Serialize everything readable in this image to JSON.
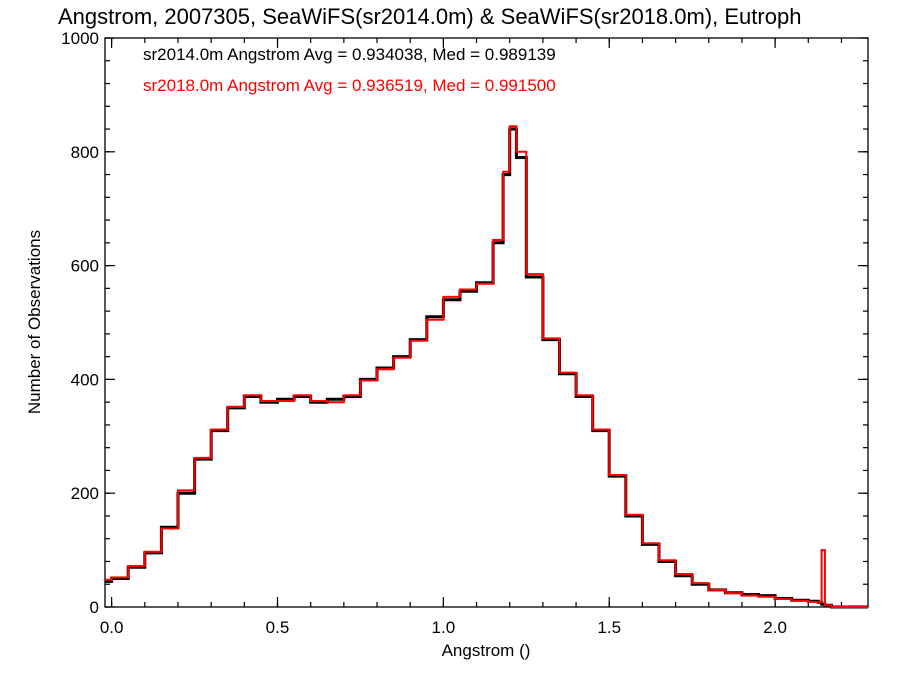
{
  "chart_data": {
    "type": "line",
    "title": "Angstrom, 2007305, SeaWiFS(sr2014.0m) & SeaWiFS(sr2018.0m), Eutroph",
    "xlabel": "Angstrom ()",
    "ylabel": "Number of Observations",
    "xlim": [
      -0.02,
      2.28
    ],
    "ylim": [
      0,
      1000
    ],
    "x_ticks": [
      0.0,
      0.5,
      1.0,
      1.5,
      2.0
    ],
    "x_tick_labels": [
      "0.0",
      "0.5",
      "1.0",
      "1.5",
      "2.0"
    ],
    "y_ticks": [
      0,
      200,
      400,
      600,
      800,
      1000
    ],
    "y_tick_labels": [
      "0",
      "200",
      "400",
      "600",
      "800",
      "1000"
    ],
    "grid": false,
    "annotations": [
      {
        "text": "sr2014.0m Angstrom Avg = 0.934038, Med = 0.989139",
        "color": "#000000"
      },
      {
        "text": "sr2018.0m Angstrom Avg = 0.936519, Med = 0.991500",
        "color": "#ff0000"
      }
    ],
    "series": [
      {
        "color": "#000000",
        "x": [
          -0.02,
          0.0,
          0.05,
          0.1,
          0.15,
          0.2,
          0.25,
          0.3,
          0.35,
          0.4,
          0.45,
          0.5,
          0.55,
          0.6,
          0.65,
          0.7,
          0.75,
          0.8,
          0.85,
          0.9,
          0.95,
          1.0,
          1.05,
          1.1,
          1.15,
          1.18,
          1.2,
          1.22,
          1.25,
          1.3,
          1.35,
          1.4,
          1.45,
          1.5,
          1.55,
          1.6,
          1.65,
          1.7,
          1.75,
          1.8,
          1.85,
          1.9,
          1.95,
          2.0,
          2.05,
          2.1,
          2.13,
          2.14,
          2.15,
          2.17,
          2.2,
          2.28
        ],
        "y": [
          45,
          50,
          70,
          95,
          140,
          200,
          260,
          310,
          350,
          370,
          360,
          365,
          370,
          360,
          365,
          370,
          400,
          420,
          440,
          470,
          510,
          540,
          555,
          570,
          640,
          760,
          840,
          790,
          580,
          470,
          410,
          370,
          310,
          230,
          160,
          110,
          80,
          55,
          40,
          30,
          25,
          22,
          20,
          15,
          12,
          10,
          8,
          5,
          3,
          0,
          0,
          0
        ]
      },
      {
        "color": "#ff0000",
        "x": [
          -0.02,
          0.0,
          0.05,
          0.1,
          0.15,
          0.2,
          0.25,
          0.3,
          0.35,
          0.4,
          0.45,
          0.5,
          0.55,
          0.6,
          0.65,
          0.7,
          0.75,
          0.8,
          0.85,
          0.9,
          0.95,
          1.0,
          1.05,
          1.1,
          1.15,
          1.18,
          1.2,
          1.22,
          1.25,
          1.3,
          1.35,
          1.4,
          1.45,
          1.5,
          1.55,
          1.6,
          1.65,
          1.7,
          1.75,
          1.8,
          1.85,
          1.9,
          1.95,
          2.0,
          2.05,
          2.1,
          2.13,
          2.14,
          2.15,
          2.17,
          2.2,
          2.28
        ],
        "y": [
          48,
          52,
          72,
          97,
          138,
          205,
          262,
          312,
          352,
          372,
          362,
          362,
          372,
          362,
          360,
          372,
          398,
          418,
          438,
          468,
          505,
          545,
          558,
          568,
          645,
          765,
          845,
          800,
          585,
          472,
          412,
          372,
          312,
          232,
          162,
          112,
          82,
          58,
          42,
          30,
          24,
          20,
          18,
          14,
          11,
          9,
          8,
          100,
          3,
          0,
          0,
          0
        ]
      }
    ]
  }
}
